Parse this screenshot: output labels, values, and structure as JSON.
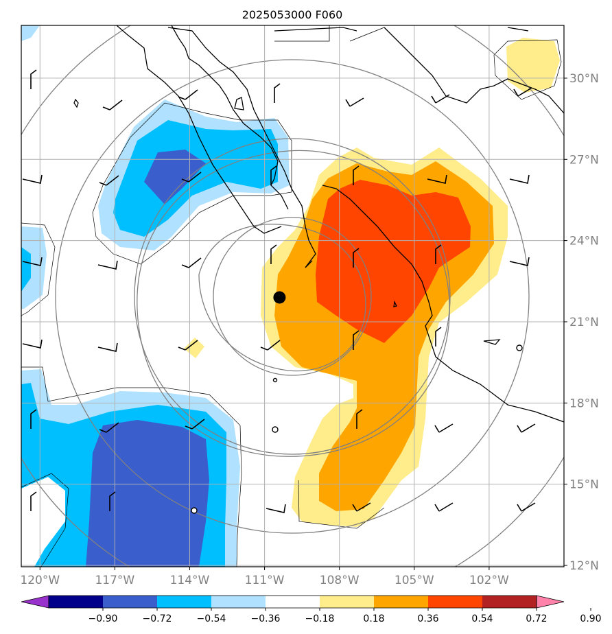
{
  "title": "2025053000 F060",
  "map": {
    "lon_range": [
      -120.75,
      -99.0
    ],
    "lat_range": [
      11.95,
      31.95
    ],
    "lon_ticks": [
      {
        "value": -120,
        "label": "120°W"
      },
      {
        "value": -117,
        "label": "117°W"
      },
      {
        "value": -114,
        "label": "114°W"
      },
      {
        "value": -111,
        "label": "111°W"
      },
      {
        "value": -108,
        "label": "108°W"
      },
      {
        "value": -105,
        "label": "105°W"
      },
      {
        "value": -102,
        "label": "102°W"
      }
    ],
    "lat_ticks": [
      {
        "value": 30,
        "label": "30°N"
      },
      {
        "value": 27,
        "label": "27°N"
      },
      {
        "value": 24,
        "label": "24°N"
      },
      {
        "value": 21,
        "label": "21°N"
      },
      {
        "value": 18,
        "label": "18°N"
      },
      {
        "value": 15,
        "label": "15°N"
      },
      {
        "value": 12,
        "label": "12°N"
      }
    ],
    "grid": true,
    "storm_center": {
      "lon": -110.4,
      "lat": 21.9
    }
  },
  "colorbar": {
    "levels": [
      "−0.90",
      "−0.72",
      "−0.54",
      "−0.36",
      "−0.18",
      "0.18",
      "0.36",
      "0.54",
      "0.72",
      "0.90"
    ],
    "colors": [
      "#9932cc",
      "#00008b",
      "#3a5fcd",
      "#00bfff",
      "#b0e2ff",
      "#ffffff",
      "#ffec8b",
      "#ffa500",
      "#ff4500",
      "#b22222",
      "#ff82ab"
    ]
  },
  "fields": {
    "pos_light": "#ffec8b",
    "pos_mid": "#ffa500",
    "pos_high": "#ff4500",
    "neg_light": "#b0e2ff",
    "neg_mid": "#00bfff",
    "neg_high": "#3a5fcd"
  }
}
